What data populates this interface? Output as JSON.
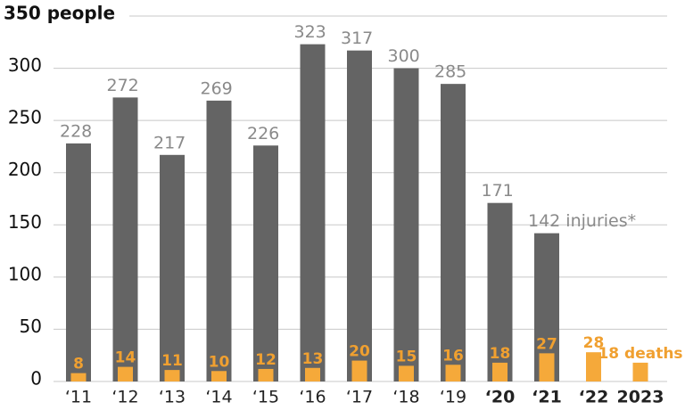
{
  "chart_data": {
    "type": "bar",
    "categories": [
      "‘11",
      "‘12",
      "‘13",
      "‘14",
      "‘15",
      "‘16",
      "‘17",
      "‘18",
      "‘19",
      "‘20",
      "‘21",
      "‘22",
      "2023"
    ],
    "series": [
      {
        "color": "#646464",
        "values": [
          228,
          272,
          217,
          269,
          226,
          323,
          317,
          300,
          285,
          171,
          142,
          null,
          null
        ],
        "value_labels": [
          "228",
          "272",
          "217",
          "269",
          "226",
          "323",
          "317",
          "300",
          "285",
          "171",
          "142 injuries*",
          null,
          null
        ]
      },
      {
        "color": "#f5a93a",
        "values": [
          8,
          14,
          11,
          10,
          12,
          13,
          20,
          15,
          16,
          18,
          27,
          28,
          18
        ],
        "value_labels": [
          "8",
          "14",
          "11",
          "10",
          "12",
          "13",
          "20",
          "15",
          "16",
          "18",
          "27",
          "28",
          "18 deaths"
        ]
      }
    ],
    "ylim": [
      0,
      350
    ],
    "yticks": [
      0,
      50,
      100,
      150,
      200,
      250,
      300,
      {
        "value": 350,
        "label": "350 people"
      }
    ],
    "grid": true
  }
}
